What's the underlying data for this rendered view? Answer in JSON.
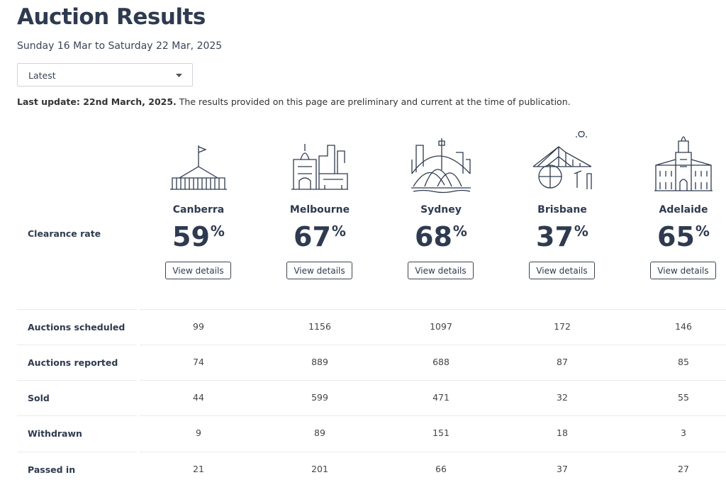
{
  "header": {
    "title": "Auction Results",
    "subtitle": "Sunday 16 Mar to Saturday 22 Mar, 2025"
  },
  "dropdown": {
    "label": "Latest"
  },
  "notice": {
    "bold": "Last update: 22nd March, 2025.",
    "text": "The results provided on this page are preliminary and current at the time of publication."
  },
  "table": {
    "clearance_label": "Clearance rate",
    "button_label": "View details",
    "unit": "%",
    "cities": [
      {
        "name": "Canberra",
        "rate": "59"
      },
      {
        "name": "Melbourne",
        "rate": "67"
      },
      {
        "name": "Sydney",
        "rate": "68"
      },
      {
        "name": "Brisbane",
        "rate": "37"
      },
      {
        "name": "Adelaide",
        "rate": "65"
      }
    ],
    "rows": [
      {
        "label": "Auctions scheduled",
        "values": [
          "99",
          "1156",
          "1097",
          "172",
          "146"
        ]
      },
      {
        "label": "Auctions reported",
        "values": [
          "74",
          "889",
          "688",
          "87",
          "85"
        ]
      },
      {
        "label": "Sold",
        "values": [
          "44",
          "599",
          "471",
          "32",
          "55"
        ]
      },
      {
        "label": "Withdrawn",
        "values": [
          "9",
          "89",
          "151",
          "18",
          "3"
        ]
      },
      {
        "label": "Passed in",
        "values": [
          "21",
          "201",
          "66",
          "37",
          "27"
        ]
      }
    ]
  }
}
